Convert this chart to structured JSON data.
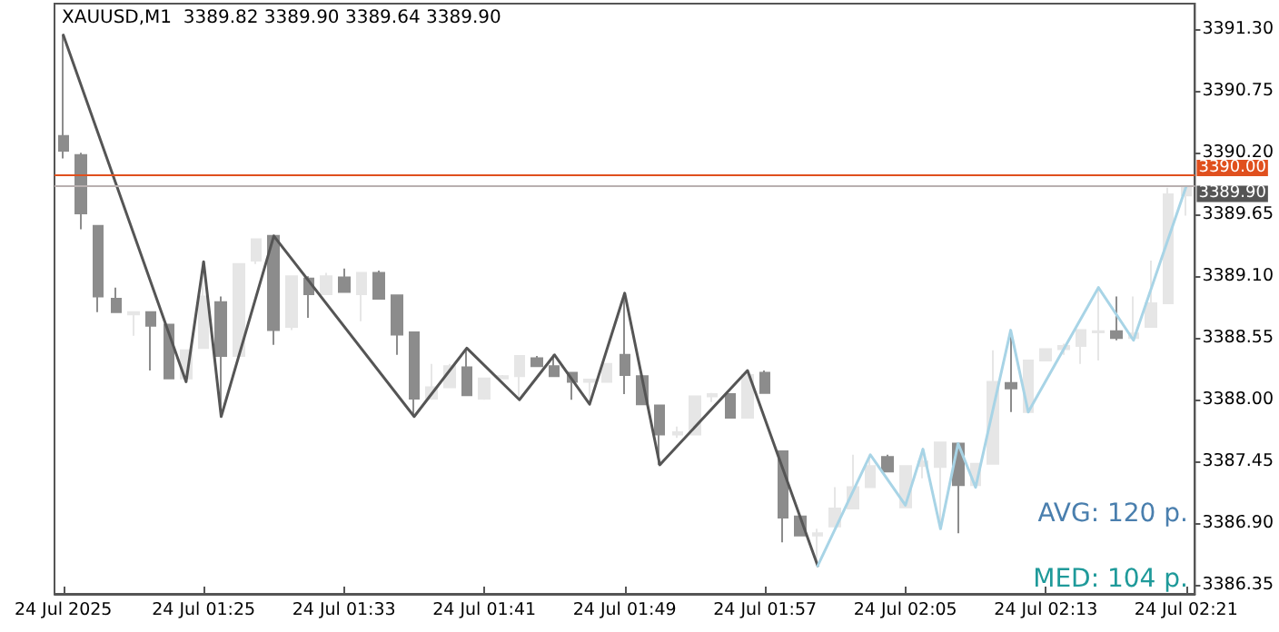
{
  "chart_data": {
    "type": "candlestick",
    "title": "XAUUSD,M1  3389.82 3389.90 3389.64 3389.90",
    "categories": [
      "24 Jul 2025",
      null,
      null,
      null,
      null,
      null,
      null,
      null,
      "24 Jul 01:25",
      null,
      null,
      null,
      null,
      null,
      null,
      null,
      "24 Jul 01:33",
      null,
      null,
      null,
      null,
      null,
      null,
      null,
      "24 Jul 01:41",
      null,
      null,
      null,
      null,
      null,
      null,
      null,
      "24 Jul 01:49",
      null,
      null,
      null,
      null,
      null,
      null,
      null,
      "24 Jul 01:57",
      null,
      null,
      null,
      null,
      null,
      null,
      null,
      "24 Jul 02:05",
      null,
      null,
      null,
      null,
      null,
      null,
      null,
      "24 Jul 02:13",
      null,
      null,
      null,
      null,
      null,
      null,
      null,
      "24 Jul 02:21"
    ],
    "ohlc": [
      [
        3390.35,
        3391.25,
        3390.15,
        3390.22
      ],
      [
        3390.18,
        3390.2,
        3389.52,
        3389.66
      ],
      [
        3389.55,
        3389.55,
        3388.78,
        3388.92
      ],
      [
        3388.9,
        3389.0,
        3388.78,
        3388.78
      ],
      [
        3388.76,
        3388.78,
        3388.57,
        3388.78
      ],
      [
        3388.78,
        3388.78,
        3388.26,
        3388.66
      ],
      [
        3388.67,
        3388.67,
        3388.19,
        3388.19
      ],
      [
        3388.19,
        3388.44,
        3388.16,
        3388.44
      ],
      [
        3388.46,
        3389.23,
        3388.46,
        3388.92
      ],
      [
        3388.87,
        3388.92,
        3387.85,
        3388.39
      ],
      [
        3388.39,
        3389.21,
        3388.39,
        3389.21
      ],
      [
        3389.24,
        3389.43,
        3389.21,
        3389.43
      ],
      [
        3389.46,
        3389.46,
        3388.49,
        3388.62
      ],
      [
        3388.65,
        3389.1,
        3388.62,
        3389.1
      ],
      [
        3389.08,
        3389.1,
        3388.73,
        3388.94
      ],
      [
        3388.94,
        3389.13,
        3388.94,
        3389.1
      ],
      [
        3389.09,
        3389.17,
        3388.96,
        3388.96
      ],
      [
        3388.94,
        3389.13,
        3388.7,
        3389.13
      ],
      [
        3389.13,
        3389.15,
        3388.9,
        3388.9
      ],
      [
        3388.93,
        3388.93,
        3388.4,
        3388.58
      ],
      [
        3388.6,
        3388.6,
        3387.85,
        3388.01
      ],
      [
        3388.01,
        3388.32,
        3388.0,
        3388.11
      ],
      [
        3388.11,
        3388.32,
        3388.11,
        3388.3
      ],
      [
        3388.29,
        3388.46,
        3388.04,
        3388.04
      ],
      [
        3388.01,
        3388.19,
        3388.0,
        3388.19
      ],
      [
        3388.19,
        3388.22,
        3388.19,
        3388.21
      ],
      [
        3388.21,
        3388.39,
        3388.0,
        3388.39
      ],
      [
        3388.37,
        3388.39,
        3388.3,
        3388.3
      ],
      [
        3388.3,
        3388.4,
        3388.21,
        3388.21
      ],
      [
        3388.24,
        3388.24,
        3388.0,
        3388.16
      ],
      [
        3388.16,
        3388.18,
        3387.96,
        3388.18
      ],
      [
        3388.16,
        3388.32,
        3388.16,
        3388.32
      ],
      [
        3388.4,
        3388.95,
        3388.05,
        3388.22
      ],
      [
        3388.21,
        3388.22,
        3387.96,
        3387.96
      ],
      [
        3387.95,
        3387.95,
        3387.42,
        3387.69
      ],
      [
        3387.69,
        3387.76,
        3387.66,
        3387.71
      ],
      [
        3387.69,
        3388.03,
        3387.69,
        3388.03
      ],
      [
        3388.03,
        3388.06,
        3387.98,
        3388.05
      ],
      [
        3388.05,
        3388.05,
        3387.84,
        3387.84
      ],
      [
        3387.84,
        3388.26,
        3387.84,
        3388.22
      ],
      [
        3388.24,
        3388.26,
        3388.06,
        3388.06
      ],
      [
        3387.54,
        3387.54,
        3386.73,
        3386.95
      ],
      [
        3386.96,
        3386.96,
        3386.79,
        3386.79
      ],
      [
        3386.79,
        3386.85,
        3386.52,
        3386.81
      ],
      [
        3386.87,
        3387.22,
        3386.87,
        3387.03
      ],
      [
        3387.03,
        3387.51,
        3387.03,
        3387.22
      ],
      [
        3387.22,
        3387.51,
        3387.22,
        3387.41
      ],
      [
        3387.49,
        3387.51,
        3387.36,
        3387.36
      ],
      [
        3387.04,
        3387.41,
        3387.04,
        3387.41
      ],
      [
        3387.41,
        3387.56,
        3387.3,
        3387.45
      ],
      [
        3387.4,
        3387.62,
        3386.85,
        3387.62
      ],
      [
        3387.61,
        3387.61,
        3386.81,
        3387.24
      ],
      [
        3387.24,
        3387.43,
        3387.22,
        3387.43
      ],
      [
        3387.43,
        3388.44,
        3387.43,
        3388.16
      ],
      [
        3388.15,
        3388.62,
        3387.89,
        3388.1
      ],
      [
        3387.89,
        3388.35,
        3387.89,
        3388.35
      ],
      [
        3388.35,
        3388.45,
        3388.35,
        3388.45
      ],
      [
        3388.45,
        3388.5,
        3388.4,
        3388.48
      ],
      [
        3388.48,
        3388.62,
        3388.32,
        3388.62
      ],
      [
        3388.6,
        3389.0,
        3388.35,
        3388.61
      ],
      [
        3388.61,
        3388.92,
        3388.53,
        3388.55
      ],
      [
        3388.55,
        3388.92,
        3388.53,
        3388.59
      ],
      [
        3388.65,
        3389.24,
        3388.65,
        3388.86
      ],
      [
        3388.86,
        3389.89,
        3388.86,
        3389.83
      ],
      [
        3389.82,
        3389.9,
        3389.64,
        3389.9
      ]
    ],
    "colors": [
      "#8c8c8c",
      "#8c8c8c",
      "#8c8c8c",
      "#8c8c8c",
      "#e6e6e6",
      "#8c8c8c",
      "#8c8c8c",
      "#e6e6e6",
      "#e6e6e6",
      "#8c8c8c",
      "#e6e6e6",
      "#e6e6e6",
      "#8c8c8c",
      "#e6e6e6",
      "#8c8c8c",
      "#e6e6e6",
      "#8c8c8c",
      "#e6e6e6",
      "#8c8c8c",
      "#8c8c8c",
      "#8c8c8c",
      "#e6e6e6",
      "#e6e6e6",
      "#8c8c8c",
      "#e6e6e6",
      "#e6e6e6",
      "#e6e6e6",
      "#8c8c8c",
      "#8c8c8c",
      "#8c8c8c",
      "#e6e6e6",
      "#e6e6e6",
      "#8c8c8c",
      "#8c8c8c",
      "#8c8c8c",
      "#e6e6e6",
      "#e6e6e6",
      "#e6e6e6",
      "#8c8c8c",
      "#e6e6e6",
      "#8c8c8c",
      "#8c8c8c",
      "#8c8c8c",
      "#e6e6e6",
      "#e6e6e6",
      "#e6e6e6",
      "#e6e6e6",
      "#8c8c8c",
      "#e6e6e6",
      "#e6e6e6",
      "#e6e6e6",
      "#8c8c8c",
      "#e6e6e6",
      "#e6e6e6",
      "#8c8c8c",
      "#e6e6e6",
      "#e6e6e6",
      "#e6e6e6",
      "#e6e6e6",
      "#e6e6e6",
      "#8c8c8c",
      "#e6e6e6",
      "#e6e6e6",
      "#e6e6e6",
      "#e6e6e6"
    ],
    "series": [
      {
        "type": "line",
        "color": "#555555",
        "values": [
          3391.25,
          null,
          null,
          null,
          null,
          null,
          null,
          3388.16,
          3389.23,
          3387.85,
          null,
          null,
          3389.46,
          null,
          null,
          null,
          null,
          null,
          null,
          null,
          3387.85,
          null,
          null,
          3388.46,
          null,
          null,
          3388.0,
          null,
          3388.4,
          null,
          3387.96,
          null,
          3388.95,
          null,
          3387.42,
          null,
          null,
          null,
          null,
          3388.26,
          null,
          null,
          null,
          3386.52,
          null,
          null,
          null,
          null,
          null,
          null,
          null,
          null,
          null,
          null,
          null,
          null,
          null,
          null,
          null,
          null,
          null,
          null,
          null,
          null,
          null
        ]
      },
      {
        "type": "line",
        "color": "#a8d4e6",
        "values": [
          null,
          null,
          null,
          null,
          null,
          null,
          null,
          null,
          null,
          null,
          null,
          null,
          null,
          null,
          null,
          null,
          null,
          null,
          null,
          null,
          null,
          null,
          null,
          null,
          null,
          null,
          null,
          null,
          null,
          null,
          null,
          null,
          null,
          null,
          null,
          null,
          null,
          null,
          null,
          null,
          null,
          null,
          null,
          3386.52,
          null,
          null,
          3387.51,
          null,
          3387.06,
          3387.56,
          3386.85,
          3387.61,
          3387.22,
          null,
          3388.62,
          3387.89,
          null,
          null,
          null,
          3389.0,
          null,
          3388.53,
          null,
          null,
          3389.9
        ]
      }
    ],
    "marker": "none",
    "line_style": "solid",
    "ylim": [
      3386.27,
      3391.53
    ],
    "yticks": [
      {
        "value": 3386.35,
        "label": "3386.35"
      },
      {
        "value": 3386.9,
        "label": "3386.90"
      },
      {
        "value": 3387.45,
        "label": "3387.45"
      },
      {
        "value": 3388.0,
        "label": "3388.00"
      },
      {
        "value": 3388.55,
        "label": "3388.55"
      },
      {
        "value": 3389.1,
        "label": "3389.10"
      },
      {
        "value": 3389.65,
        "label": "3389.65"
      },
      {
        "value": 3390.2,
        "label": "3390.20"
      },
      {
        "value": 3390.75,
        "label": "3390.75"
      },
      {
        "value": 3391.3,
        "label": "3391.30"
      }
    ],
    "ref_lines": [
      {
        "axis": "y",
        "value": 3390.0,
        "label": "3390.00",
        "color": "#e0501e"
      },
      {
        "axis": "y",
        "value": 3389.9,
        "label": "3389.90",
        "color": "#b8b0b0"
      }
    ],
    "annotations": [
      "AVG: 120 p.",
      "MED: 104 p."
    ],
    "grid": false
  }
}
